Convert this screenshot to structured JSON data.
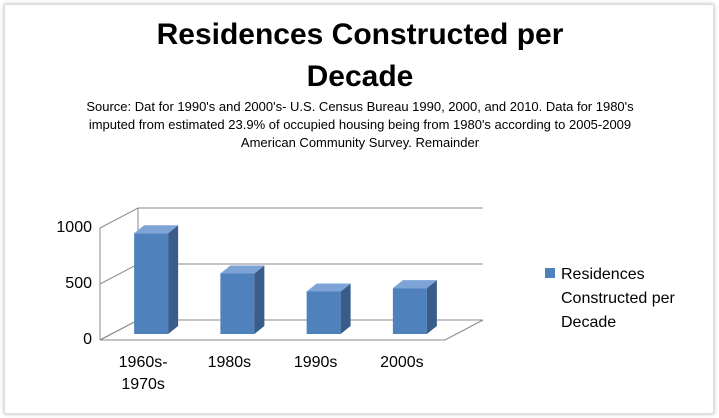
{
  "chart_data": {
    "type": "bar3d",
    "title": "Residences Constructed per Decade",
    "subtitle": "Source:  Dat for 1990's and 2000's- U.S. Census Bureau 1990, 2000, and 2010. Data for 1980's imputed from estimated 23.9% of occupied housing being from 1980's according to 2005-2009 American Community Survey. Remainder",
    "categories": [
      "1960s-1970s",
      "1980s",
      "1990s",
      "2000s"
    ],
    "series": [
      {
        "name": "Residences Constructed per Decade",
        "color": "#4f81bd",
        "values": [
          900,
          540,
          380,
          410
        ]
      }
    ],
    "ylim": [
      0,
      1000
    ],
    "yticks": [
      0,
      500,
      1000
    ],
    "grid": true,
    "legend": "right"
  }
}
